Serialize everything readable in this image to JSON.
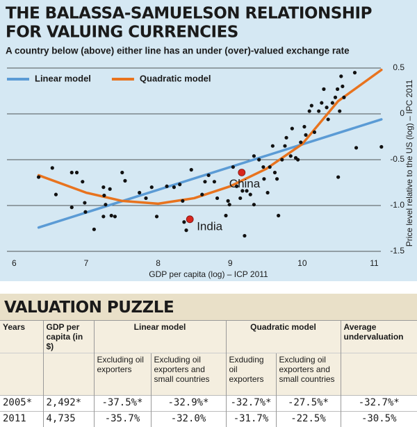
{
  "chart_data": {
    "type": "scatter",
    "title": [
      "THE BALASSA-SAMUELSON RELATIONSHIP",
      "FOR VALUING CURRENCIES"
    ],
    "subtitle": "A country below (above) either line has an under (over)-valued exchange rate",
    "x_label": "GDP per capita (log) – ICP 2011",
    "y_label": "Price level relative to the US (log) – IPC 2011",
    "xlim": [
      5.9,
      11.15
    ],
    "ylim": [
      -1.5,
      0.5
    ],
    "xticks": [
      6,
      7,
      8,
      9,
      10,
      11
    ],
    "yticks": [
      0.5,
      0,
      -0.5,
      {
        "value": -1,
        "label": "-1.0"
      },
      -1.5
    ],
    "grid": true,
    "points": {
      "color": "#111111",
      "x": [
        6.34,
        6.53,
        6.58,
        6.8,
        6.87,
        6.8,
        6.95,
        6.98,
        6.99,
        7.11,
        7.24,
        7.25,
        7.27,
        7.33,
        7.35,
        7.4,
        7.24,
        7.5,
        7.54,
        7.74,
        7.83,
        7.91,
        7.98,
        8.12,
        8.22,
        8.3,
        8.34,
        8.36,
        8.39,
        8.46,
        8.61,
        8.65,
        8.7,
        8.78,
        8.82,
        8.94,
        8.97,
        8.99,
        9.04,
        9.09,
        9.14,
        9.17,
        9.2,
        9.23,
        9.28,
        9.33,
        9.33,
        9.4,
        9.46,
        9.47,
        9.52,
        9.55,
        9.59,
        9.62,
        9.65,
        9.67,
        9.72,
        9.76,
        9.78,
        9.84,
        9.86,
        9.91,
        9.94,
        9.98,
        10.03,
        10.05,
        10.1,
        10.13,
        10.17,
        10.23,
        10.27,
        10.3,
        10.34,
        10.36,
        10.42,
        10.46,
        10.49,
        10.52,
        10.54,
        10.56,
        10.58,
        10.5,
        10.73,
        10.75,
        11.1
      ],
      "y": [
        -0.69,
        -0.59,
        -0.88,
        -0.64,
        -0.64,
        -1.02,
        -0.74,
        -0.97,
        -1.07,
        -1.26,
        -0.8,
        -0.89,
        -0.99,
        -0.82,
        -1.11,
        -1.12,
        -1.12,
        -0.64,
        -0.73,
        -0.86,
        -0.92,
        -0.8,
        -1.12,
        -0.79,
        -0.8,
        -0.77,
        -0.95,
        -1.18,
        -1.27,
        -0.61,
        -0.88,
        -0.74,
        -0.67,
        -0.74,
        -0.92,
        -1.11,
        -0.95,
        -0.99,
        -0.58,
        -0.79,
        -0.92,
        -0.84,
        -1.33,
        -0.84,
        -0.88,
        -0.99,
        -0.46,
        -0.5,
        -0.58,
        -0.71,
        -0.86,
        -0.58,
        -0.35,
        -0.64,
        -0.71,
        -1.11,
        -0.5,
        -0.35,
        -0.26,
        -0.46,
        -0.16,
        -0.48,
        -0.5,
        -0.31,
        -0.14,
        -0.23,
        0.03,
        0.09,
        -0.2,
        0.03,
        0.12,
        0.27,
        0.07,
        -0.06,
        0.12,
        0.18,
        0.27,
        0.03,
        0.41,
        0.3,
        0.18,
        -0.69,
        0.45,
        -0.37,
        -0.36
      ]
    },
    "highlight_color": "#d7261e",
    "highlights": [
      {
        "label": "China",
        "x": 9.16,
        "y": -0.64
      },
      {
        "label": "India",
        "x": 8.44,
        "y": -1.15
      }
    ],
    "series": [
      {
        "name": "Linear model",
        "color": "#5b9bd5",
        "x": [
          6.34,
          11.1
        ],
        "values": [
          -1.24,
          -0.06
        ]
      },
      {
        "name": "Quadratic model",
        "color": "#e8731e",
        "x": [
          6.34,
          7,
          7.5,
          8,
          8.5,
          9,
          9.5,
          10,
          10.5,
          11.1
        ],
        "values": [
          -0.67,
          -0.86,
          -0.95,
          -0.98,
          -0.92,
          -0.79,
          -0.6,
          -0.33,
          0.14,
          0.48
        ]
      }
    ]
  },
  "table": {
    "title": "VALUATION PUZZLE",
    "header": [
      "Years",
      "GDP per capita (in $)",
      "Linear model",
      "Quadratic model",
      "Average undervaluation"
    ],
    "subheader": [
      "Excluding oil exporters",
      "Excluding oil exporters and small countries",
      "Exduding oil exporters",
      "Excluding oil exporters and small countries"
    ],
    "rows": [
      [
        "2005*",
        "2,492*",
        "-37.5%*",
        "-32.9%*",
        "-32.7%*",
        "-27.5%*",
        "-32.7%*"
      ],
      [
        "2011",
        "4,735",
        "-35.7%",
        "-32.0%",
        "-31.7%",
        "-22.5%",
        "-30.5%"
      ]
    ]
  }
}
